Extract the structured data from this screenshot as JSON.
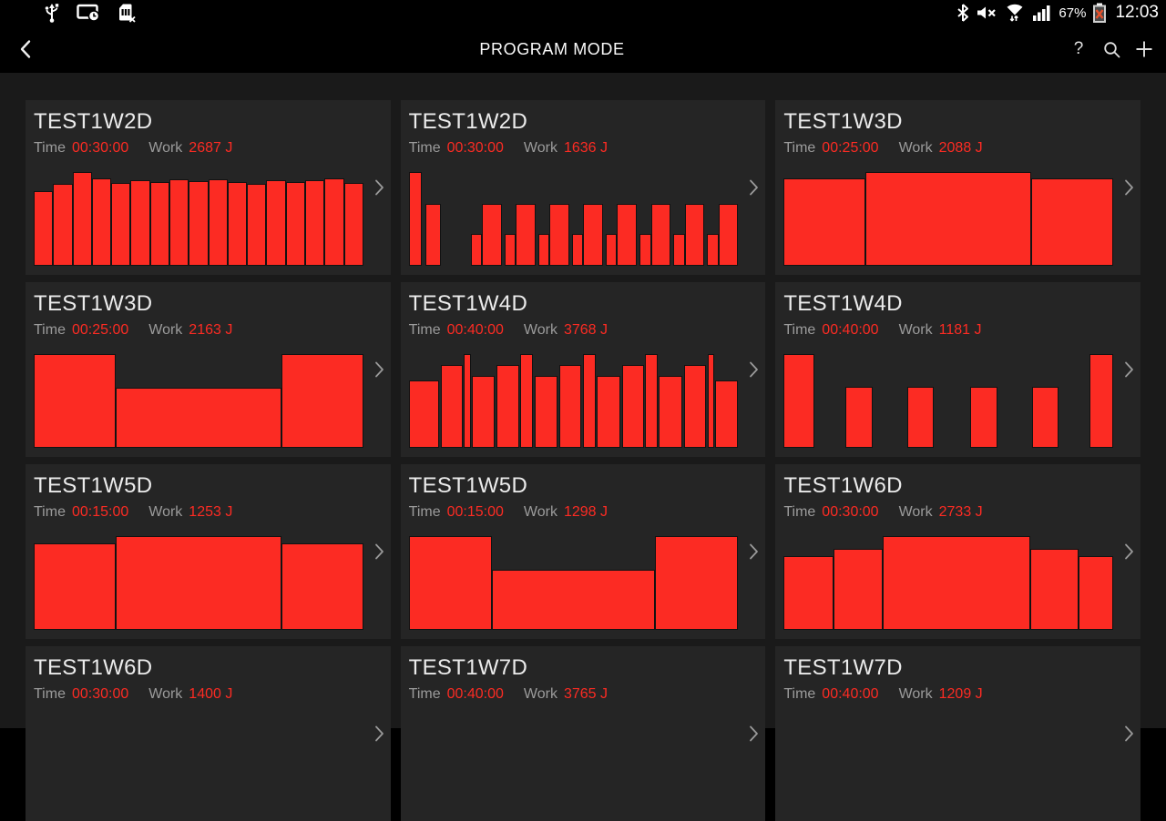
{
  "status_bar": {
    "battery_percent": "67%",
    "clock": "12:03",
    "left_icons": [
      {
        "name": "usb-icon"
      },
      {
        "name": "screen-timeout-icon"
      },
      {
        "name": "no-sim-icon"
      }
    ],
    "right_icons": [
      {
        "name": "bluetooth-icon"
      },
      {
        "name": "mute-icon"
      },
      {
        "name": "wifi-icon"
      },
      {
        "name": "signal-strength-icon"
      },
      {
        "name": "battery-error-icon"
      }
    ]
  },
  "action_bar": {
    "title": "PROGRAM MODE",
    "help_label": "?"
  },
  "card_labels": {
    "time": "Time",
    "work": "Work"
  },
  "colors": {
    "accent_red": "#fc2b23",
    "page_bg": "#1a1a1a",
    "card_bg": "#252525",
    "bar_border": "#121212",
    "label_gray": "#9b9b9b",
    "title_color": "#ebebeb"
  },
  "programs": [
    {
      "name": "TEST1W2D",
      "time": "00:30:00",
      "work": "2687 J",
      "bars": [
        [
          1,
          0.8
        ],
        [
          1,
          0.87
        ],
        [
          1,
          1.0
        ],
        [
          1,
          0.93
        ],
        [
          1,
          0.88
        ],
        [
          1,
          0.91
        ],
        [
          1,
          0.89
        ],
        [
          1,
          0.92
        ],
        [
          1,
          0.9
        ],
        [
          1,
          0.92
        ],
        [
          1,
          0.89
        ],
        [
          1,
          0.87
        ],
        [
          1,
          0.91
        ],
        [
          1,
          0.89
        ],
        [
          1,
          0.91
        ],
        [
          1,
          0.93
        ],
        [
          1,
          0.88
        ]
      ]
    },
    {
      "name": "TEST1W2D",
      "time": "00:30:00",
      "work": "1636 J",
      "bars": [
        [
          1.2,
          1.0
        ],
        [
          0.3,
          0
        ],
        [
          1.4,
          0.66
        ],
        [
          3.1,
          0
        ],
        [
          1.0,
          0.34
        ],
        [
          1.85,
          0.66
        ],
        [
          0.25,
          0
        ],
        [
          1.0,
          0.34
        ],
        [
          1.85,
          0.66
        ],
        [
          0.25,
          0
        ],
        [
          1.0,
          0.34
        ],
        [
          1.85,
          0.66
        ],
        [
          0.25,
          0
        ],
        [
          1.0,
          0.34
        ],
        [
          1.85,
          0.66
        ],
        [
          0.25,
          0
        ],
        [
          1.0,
          0.34
        ],
        [
          1.85,
          0.66
        ],
        [
          0.25,
          0
        ],
        [
          1.0,
          0.34
        ],
        [
          1.85,
          0.66
        ],
        [
          0.25,
          0
        ],
        [
          1.0,
          0.34
        ],
        [
          1.85,
          0.66
        ],
        [
          0.25,
          0
        ],
        [
          1.0,
          0.34
        ],
        [
          1.85,
          0.66
        ]
      ]
    },
    {
      "name": "TEST1W3D",
      "time": "00:25:00",
      "work": "2088 J",
      "bars": [
        [
          1,
          0.93
        ],
        [
          2.05,
          1.0
        ],
        [
          1,
          0.93
        ]
      ]
    },
    {
      "name": "TEST1W3D",
      "time": "00:25:00",
      "work": "2163 J",
      "bars": [
        [
          1,
          1.0
        ],
        [
          2.05,
          0.64
        ],
        [
          1,
          1.0
        ]
      ]
    },
    {
      "name": "TEST1W4D",
      "time": "00:40:00",
      "work": "3768 J",
      "bars": [
        [
          112,
          0.72
        ],
        [
          6,
          0
        ],
        [
          77,
          0.88
        ],
        [
          5,
          0
        ],
        [
          20,
          1.0
        ],
        [
          5,
          0
        ],
        [
          82,
          0.77
        ],
        [
          8,
          0
        ],
        [
          80,
          0.88
        ],
        [
          5,
          0
        ],
        [
          43,
          1.0
        ],
        [
          5,
          0
        ],
        [
          83,
          0.77
        ],
        [
          8,
          0
        ],
        [
          78,
          0.88
        ],
        [
          5,
          0
        ],
        [
          43,
          1.0
        ],
        [
          5,
          0
        ],
        [
          83,
          0.77
        ],
        [
          8,
          0
        ],
        [
          77,
          0.88
        ],
        [
          5,
          0
        ],
        [
          43,
          1.0
        ],
        [
          5,
          0
        ],
        [
          83,
          0.77
        ],
        [
          8,
          0
        ],
        [
          79,
          0.88
        ],
        [
          5,
          0
        ],
        [
          18,
          1.0
        ],
        [
          5,
          0
        ],
        [
          82,
          0.72
        ]
      ]
    },
    {
      "name": "TEST1W4D",
      "time": "00:40:00",
      "work": "1181 J",
      "bars": [
        [
          100,
          1.0
        ],
        [
          104,
          0
        ],
        [
          88,
          0.65
        ],
        [
          120,
          0
        ],
        [
          85,
          0.65
        ],
        [
          125,
          0
        ],
        [
          85,
          0.65
        ],
        [
          120,
          0
        ],
        [
          85,
          0.65
        ],
        [
          105,
          0
        ],
        [
          75,
          1.0
        ]
      ]
    },
    {
      "name": "TEST1W5D",
      "time": "00:15:00",
      "work": "1253 J",
      "bars": [
        [
          1,
          0.92
        ],
        [
          2.05,
          1.0
        ],
        [
          1,
          0.92
        ]
      ]
    },
    {
      "name": "TEST1W5D",
      "time": "00:15:00",
      "work": "1298 J",
      "bars": [
        [
          1,
          1.0
        ],
        [
          2.0,
          0.64
        ],
        [
          1,
          1.0
        ]
      ]
    },
    {
      "name": "TEST1W6D",
      "time": "00:30:00",
      "work": "2733 J",
      "bars": [
        [
          160,
          0.79
        ],
        [
          160,
          0.86
        ],
        [
          490,
          1.0
        ],
        [
          155,
          0.86
        ],
        [
          110,
          0.79
        ]
      ]
    },
    {
      "name": "TEST1W6D",
      "time": "00:30:00",
      "work": "1400 J",
      "bars": []
    },
    {
      "name": "TEST1W7D",
      "time": "00:40:00",
      "work": "3765 J",
      "bars": []
    },
    {
      "name": "TEST1W7D",
      "time": "00:40:00",
      "work": "1209 J",
      "bars": []
    }
  ]
}
